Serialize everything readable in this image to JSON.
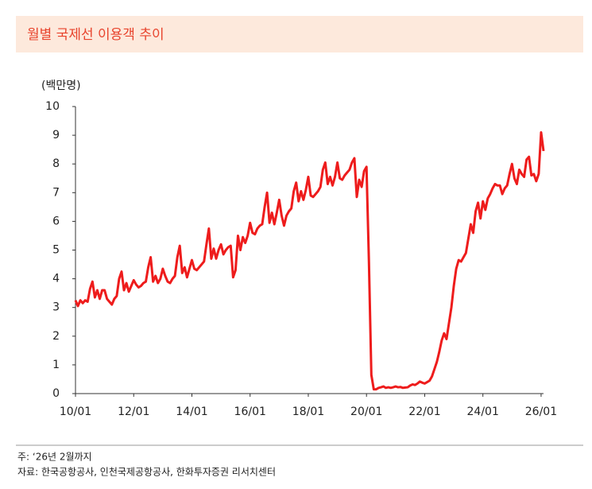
{
  "chart_data": {
    "type": "line",
    "title": "월별 국제선 이용객 추이",
    "y_unit": "(백만명)",
    "footnotes": [
      "주:   ‘26년 2월까지",
      "자료: 한국공항공사, 인천국제공항공사, 한화투자증권 리서치센터"
    ],
    "x": [
      "10/01",
      "10/02",
      "10/03",
      "10/04",
      "10/05",
      "10/06",
      "10/07",
      "10/08",
      "10/09",
      "10/10",
      "10/11",
      "10/12",
      "11/01",
      "11/02",
      "11/03",
      "11/04",
      "11/05",
      "11/06",
      "11/07",
      "11/08",
      "11/09",
      "11/10",
      "11/11",
      "11/12",
      "12/01",
      "12/02",
      "12/03",
      "12/04",
      "12/05",
      "12/06",
      "12/07",
      "12/08",
      "12/09",
      "12/10",
      "12/11",
      "12/12",
      "13/01",
      "13/02",
      "13/03",
      "13/04",
      "13/05",
      "13/06",
      "13/07",
      "13/08",
      "13/09",
      "13/10",
      "13/11",
      "13/12",
      "14/01",
      "14/02",
      "14/03",
      "14/04",
      "14/05",
      "14/06",
      "14/07",
      "14/08",
      "14/09",
      "14/10",
      "14/11",
      "14/12",
      "15/01",
      "15/02",
      "15/03",
      "15/04",
      "15/05",
      "15/06",
      "15/07",
      "15/08",
      "15/09",
      "15/10",
      "15/11",
      "15/12",
      "16/01",
      "16/02",
      "16/03",
      "16/04",
      "16/05",
      "16/06",
      "16/07",
      "16/08",
      "16/09",
      "16/10",
      "16/11",
      "16/12",
      "17/01",
      "17/02",
      "17/03",
      "17/04",
      "17/05",
      "17/06",
      "17/07",
      "17/08",
      "17/09",
      "17/10",
      "17/11",
      "17/12",
      "18/01",
      "18/02",
      "18/03",
      "18/04",
      "18/05",
      "18/06",
      "18/07",
      "18/08",
      "18/09",
      "18/10",
      "18/11",
      "18/12",
      "19/01",
      "19/02",
      "19/03",
      "19/04",
      "19/05",
      "19/06",
      "19/07",
      "19/08",
      "19/09",
      "19/10",
      "19/11",
      "19/12",
      "20/01",
      "20/02",
      "20/03",
      "20/04",
      "20/05",
      "20/06",
      "20/07",
      "20/08",
      "20/09",
      "20/10",
      "20/11",
      "20/12",
      "21/01",
      "21/02",
      "21/03",
      "21/04",
      "21/05",
      "21/06",
      "21/07",
      "21/08",
      "21/09",
      "21/10",
      "21/11",
      "21/12",
      "22/01",
      "22/02",
      "22/03",
      "22/04",
      "22/05",
      "22/06",
      "22/07",
      "22/08",
      "22/09",
      "22/10",
      "22/11",
      "22/12",
      "23/01",
      "23/02",
      "23/03",
      "23/04",
      "23/05",
      "23/06",
      "23/07",
      "23/08",
      "23/09",
      "23/10",
      "23/11",
      "23/12",
      "24/01",
      "24/02",
      "24/03",
      "24/04",
      "24/05",
      "24/06",
      "24/07",
      "24/08",
      "24/09",
      "24/10",
      "24/11",
      "24/12",
      "25/01",
      "25/02",
      "25/03",
      "25/04",
      "25/05",
      "25/06",
      "25/07",
      "25/08",
      "25/09",
      "25/10",
      "25/11",
      "25/12",
      "26/01",
      "26/02"
    ],
    "series": [
      {
        "name": "국제선 이용객",
        "color": "#ee1c1c",
        "values": [
          3.25,
          3.05,
          3.25,
          3.15,
          3.25,
          3.2,
          3.65,
          3.9,
          3.35,
          3.6,
          3.3,
          3.6,
          3.6,
          3.3,
          3.2,
          3.1,
          3.3,
          3.4,
          4.0,
          4.25,
          3.6,
          3.85,
          3.55,
          3.75,
          3.95,
          3.8,
          3.7,
          3.75,
          3.85,
          3.9,
          4.4,
          4.75,
          3.9,
          4.1,
          3.85,
          4.0,
          4.35,
          4.1,
          3.9,
          3.85,
          4.0,
          4.1,
          4.75,
          5.15,
          4.2,
          4.4,
          4.05,
          4.35,
          4.65,
          4.35,
          4.3,
          4.4,
          4.5,
          4.6,
          5.2,
          5.75,
          4.7,
          5.05,
          4.7,
          5.0,
          5.2,
          4.85,
          5.0,
          5.1,
          5.15,
          4.05,
          4.3,
          5.5,
          5.0,
          5.45,
          5.25,
          5.5,
          5.95,
          5.6,
          5.55,
          5.75,
          5.85,
          5.9,
          6.5,
          7.0,
          5.95,
          6.3,
          5.9,
          6.3,
          6.75,
          6.2,
          5.85,
          6.2,
          6.35,
          6.45,
          7.05,
          7.35,
          6.7,
          7.05,
          6.75,
          7.1,
          7.55,
          6.9,
          6.85,
          6.95,
          7.05,
          7.2,
          7.8,
          8.05,
          7.3,
          7.55,
          7.25,
          7.55,
          8.05,
          7.5,
          7.45,
          7.6,
          7.7,
          7.8,
          8.05,
          8.2,
          6.85,
          7.45,
          7.2,
          7.75,
          7.9,
          4.6,
          0.65,
          0.15,
          0.15,
          0.2,
          0.22,
          0.25,
          0.2,
          0.22,
          0.2,
          0.22,
          0.25,
          0.22,
          0.23,
          0.2,
          0.21,
          0.22,
          0.28,
          0.32,
          0.3,
          0.35,
          0.42,
          0.38,
          0.35,
          0.4,
          0.45,
          0.6,
          0.85,
          1.1,
          1.45,
          1.85,
          2.1,
          1.9,
          2.45,
          3.0,
          3.75,
          4.35,
          4.65,
          4.6,
          4.75,
          4.9,
          5.4,
          5.9,
          5.6,
          6.35,
          6.65,
          6.1,
          6.7,
          6.4,
          6.8,
          6.95,
          7.15,
          7.3,
          7.25,
          7.25,
          6.95,
          7.15,
          7.25,
          7.65,
          8.0,
          7.5,
          7.3,
          7.8,
          7.65,
          7.55,
          8.15,
          8.25,
          7.6,
          7.65,
          7.4,
          7.65,
          9.1,
          8.45
        ]
      }
    ],
    "xlim": [
      "10/01",
      "26/02"
    ],
    "xticks": [
      "10/01",
      "12/01",
      "14/01",
      "16/01",
      "18/01",
      "20/01",
      "22/01",
      "24/01",
      "26/01"
    ],
    "ylim": [
      0,
      10
    ],
    "yticks": [
      0,
      1,
      2,
      3,
      4,
      5,
      6,
      7,
      8,
      9,
      10
    ],
    "grid": false
  }
}
